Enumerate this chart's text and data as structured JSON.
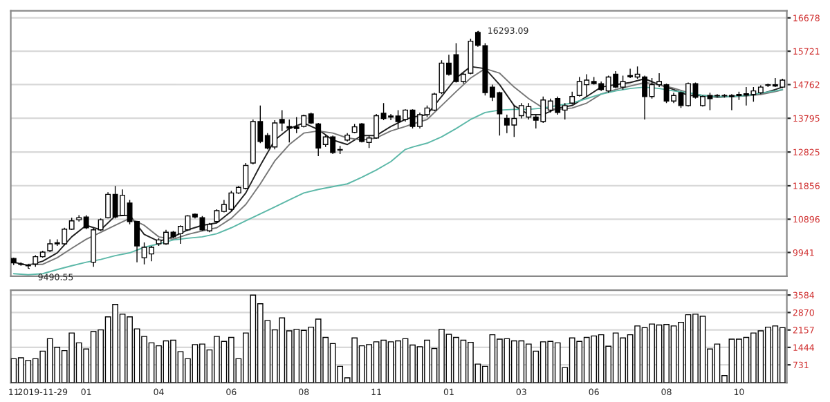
{
  "chart_data": [
    {
      "type": "candlestick",
      "categories": [
        "11",
        null,
        null,
        null,
        "2019-11-29",
        null,
        null,
        null,
        null,
        null,
        "01",
        null,
        null,
        null,
        null,
        null,
        null,
        null,
        null,
        null,
        "04",
        null,
        null,
        null,
        null,
        null,
        null,
        null,
        null,
        null,
        "06",
        null,
        null,
        null,
        null,
        null,
        null,
        null,
        null,
        null,
        "08",
        null,
        null,
        null,
        null,
        null,
        null,
        null,
        null,
        null,
        "11",
        null,
        null,
        null,
        null,
        null,
        null,
        null,
        null,
        null,
        "01",
        null,
        null,
        null,
        null,
        null,
        null,
        null,
        null,
        null,
        "03",
        null,
        null,
        null,
        null,
        null,
        null,
        null,
        null,
        null,
        "06",
        null,
        null,
        null,
        null,
        null,
        null,
        null,
        null,
        null,
        "08",
        null,
        null,
        null,
        null,
        null,
        null,
        null,
        null,
        null,
        "10",
        null,
        null,
        null,
        null,
        null,
        null
      ],
      "ohlc": [
        [
          9770,
          9790,
          9580,
          9640
        ],
        [
          9610,
          9660,
          9560,
          9600
        ],
        [
          9580,
          9610,
          9490,
          9560
        ],
        [
          9610,
          9860,
          9530,
          9820
        ],
        [
          9820,
          9990,
          9790,
          9950
        ],
        [
          9990,
          10320,
          9950,
          10190
        ],
        [
          10190,
          10320,
          10130,
          10220
        ],
        [
          10190,
          10650,
          10160,
          10610
        ],
        [
          10610,
          10940,
          10590,
          10850
        ],
        [
          10880,
          11010,
          10830,
          10940
        ],
        [
          10960,
          11010,
          10610,
          10650
        ],
        [
          9660,
          10650,
          9530,
          10590
        ],
        [
          10590,
          10920,
          10560,
          10880
        ],
        [
          10940,
          11670,
          10920,
          11610
        ],
        [
          11610,
          11850,
          10920,
          10960
        ],
        [
          11010,
          11750,
          10990,
          11580
        ],
        [
          11360,
          11450,
          10750,
          10830
        ],
        [
          10830,
          10850,
          9660,
          10130
        ],
        [
          9790,
          10230,
          9600,
          10090
        ],
        [
          9900,
          10130,
          9690,
          10090
        ],
        [
          10190,
          10350,
          10130,
          10300
        ],
        [
          10190,
          10590,
          10160,
          10520
        ],
        [
          10520,
          10560,
          10350,
          10390
        ],
        [
          10480,
          10720,
          10190,
          10690
        ],
        [
          10590,
          11010,
          10560,
          10990
        ],
        [
          11040,
          11060,
          10920,
          10960
        ],
        [
          10940,
          10990,
          10560,
          10590
        ],
        [
          10560,
          10790,
          10520,
          10750
        ],
        [
          10830,
          11180,
          10790,
          11140
        ],
        [
          11120,
          11450,
          11090,
          11320
        ],
        [
          11180,
          11710,
          11140,
          11650
        ],
        [
          11650,
          11850,
          11620,
          11810
        ],
        [
          11780,
          12510,
          11750,
          12440
        ],
        [
          12510,
          13760,
          12470,
          13700
        ],
        [
          13700,
          14160,
          13080,
          13130
        ],
        [
          13300,
          13370,
          12900,
          12940
        ],
        [
          12970,
          13740,
          12900,
          13660
        ],
        [
          13760,
          14030,
          13430,
          13660
        ],
        [
          13560,
          13760,
          13100,
          13510
        ],
        [
          13550,
          13830,
          13370,
          13500
        ],
        [
          13560,
          13900,
          13530,
          13870
        ],
        [
          13920,
          13960,
          13630,
          13660
        ],
        [
          13630,
          13660,
          12710,
          12940
        ],
        [
          13040,
          13300,
          12970,
          13260
        ],
        [
          13260,
          13300,
          12770,
          12810
        ],
        [
          12900,
          13000,
          12770,
          12880
        ],
        [
          13170,
          13370,
          13130,
          13310
        ],
        [
          13390,
          13630,
          13370,
          13550
        ],
        [
          13630,
          13660,
          13100,
          13130
        ],
        [
          13100,
          13300,
          12940,
          13230
        ],
        [
          13230,
          13920,
          13210,
          13870
        ],
        [
          13940,
          14230,
          13740,
          13790
        ],
        [
          13860,
          13920,
          13740,
          13830
        ],
        [
          13860,
          14030,
          13500,
          13700
        ],
        [
          13760,
          14050,
          13700,
          14030
        ],
        [
          14030,
          14050,
          13500,
          13560
        ],
        [
          13560,
          13960,
          13500,
          13900
        ],
        [
          13900,
          14160,
          13830,
          14090
        ],
        [
          14030,
          14530,
          14000,
          14490
        ],
        [
          14530,
          15460,
          14490,
          15380
        ],
        [
          15380,
          15620,
          15020,
          15060
        ],
        [
          15620,
          15950,
          14820,
          14850
        ],
        [
          14850,
          15090,
          14790,
          15060
        ],
        [
          15090,
          16080,
          15060,
          16010
        ],
        [
          16260,
          16293.09,
          15850,
          15890
        ],
        [
          15880,
          15950,
          14450,
          14530
        ],
        [
          14690,
          14760,
          14290,
          14400
        ],
        [
          14530,
          14560,
          13300,
          13920
        ],
        [
          13790,
          13900,
          13370,
          13600
        ],
        [
          13600,
          14160,
          13260,
          13790
        ],
        [
          13870,
          14230,
          13790,
          14160
        ],
        [
          13830,
          14230,
          13760,
          14130
        ],
        [
          13830,
          13900,
          13500,
          13740
        ],
        [
          13700,
          14420,
          13660,
          14320
        ],
        [
          14030,
          14360,
          13960,
          14290
        ],
        [
          14360,
          14420,
          13900,
          13960
        ],
        [
          14030,
          14230,
          13760,
          14160
        ],
        [
          14230,
          14560,
          14190,
          14420
        ],
        [
          14450,
          14980,
          14420,
          14850
        ],
        [
          14760,
          15060,
          14420,
          14890
        ],
        [
          14850,
          14980,
          14760,
          14790
        ],
        [
          14790,
          14850,
          14580,
          14620
        ],
        [
          14580,
          15020,
          14530,
          14980
        ],
        [
          15060,
          15150,
          14660,
          14690
        ],
        [
          14690,
          15020,
          14620,
          14850
        ],
        [
          15020,
          15220,
          14950,
          14990
        ],
        [
          14980,
          15280,
          14930,
          15060
        ],
        [
          14980,
          15020,
          13760,
          14420
        ],
        [
          14420,
          14950,
          14360,
          14760
        ],
        [
          14760,
          15090,
          14690,
          14850
        ],
        [
          14760,
          14790,
          14230,
          14290
        ],
        [
          14290,
          14530,
          14230,
          14450
        ],
        [
          14530,
          14560,
          14090,
          14160
        ],
        [
          14160,
          14820,
          14130,
          14790
        ],
        [
          14790,
          14820,
          14360,
          14400
        ],
        [
          14160,
          14450,
          14130,
          14420
        ],
        [
          14450,
          14530,
          14030,
          14360
        ],
        [
          14450,
          14490,
          14400,
          14440
        ],
        [
          14440,
          14490,
          14390,
          14450
        ],
        [
          14450,
          14490,
          14030,
          14420
        ],
        [
          14450,
          14560,
          14320,
          14480
        ],
        [
          14500,
          14690,
          14160,
          14460
        ],
        [
          14480,
          14690,
          14270,
          14580
        ],
        [
          14530,
          14740,
          14490,
          14690
        ],
        [
          14740,
          14790,
          14690,
          14760
        ],
        [
          14760,
          14950,
          14690,
          14720
        ],
        [
          14690,
          14930,
          14660,
          14890
        ]
      ],
      "series": [
        {
          "type": "line",
          "color": "#222222",
          "values": [
            9660,
            null,
            9570,
            null,
            9690,
            null,
            9930,
            null,
            10390,
            null,
            10720,
            null,
            10590,
            null,
            10990,
            null,
            11010,
            null,
            10460,
            null,
            10260,
            null,
            10390,
            null,
            10590,
            null,
            10720,
            null,
            10790,
            null,
            11120,
            null,
            11650,
            null,
            12440,
            null,
            13170,
            null,
            13500,
            null,
            13660,
            null,
            13470,
            null,
            13170,
            null,
            13040,
            null,
            13300,
            null,
            13300,
            null,
            13560,
            null,
            13760,
            13830,
            null,
            13900,
            null,
            14420,
            null,
            14950,
            null,
            15280,
            null,
            15220,
            null,
            14760,
            null,
            14160,
            null,
            13900,
            null,
            13900,
            null,
            14090,
            null,
            14160,
            null,
            14420,
            null,
            14690,
            null,
            14760,
            null,
            14820,
            null,
            14930,
            null,
            14760,
            null,
            14620,
            null,
            14450,
            null,
            14450,
            null,
            14400,
            null,
            14420,
            null,
            14450,
            null,
            14490,
            null,
            14620,
            14690
          ]
        },
        {
          "type": "line",
          "color": "#777777",
          "values": [
            null,
            null,
            9600,
            null,
            9600,
            null,
            9790,
            null,
            10060,
            null,
            10320,
            null,
            10520,
            null,
            10720,
            null,
            10920,
            null,
            10720,
            null,
            10390,
            null,
            10320,
            null,
            10460,
            null,
            10560,
            null,
            10650,
            null,
            10920,
            null,
            11320,
            null,
            11910,
            null,
            12570,
            null,
            13040,
            null,
            13370,
            null,
            13430,
            null,
            13370,
            null,
            13230,
            null,
            13170,
            null,
            13230,
            null,
            13430,
            null,
            13560,
            13630,
            null,
            13760,
            null,
            14160,
            null,
            14560,
            null,
            14950,
            null,
            15220,
            null,
            15090,
            null,
            14690,
            null,
            14360,
            null,
            14090,
            null,
            14050,
            null,
            14090,
            null,
            14230,
            null,
            14490,
            null,
            14620,
            null,
            14720,
            null,
            14820,
            null,
            14760,
            null,
            14660,
            null,
            14530,
            null,
            14450,
            null,
            14420,
            null,
            14420,
            null,
            14440,
            null,
            14480,
            null,
            14560,
            14610
          ]
        },
        {
          "type": "line",
          "color": "#5cb8a8",
          "values": [
            9330,
            null,
            9300,
            null,
            9330,
            null,
            9450,
            null,
            9560,
            null,
            9660,
            null,
            9740,
            null,
            9850,
            null,
            9930,
            null,
            10090,
            null,
            10190,
            null,
            10300,
            null,
            10350,
            null,
            10390,
            null,
            10480,
            null,
            10650,
            null,
            10850,
            null,
            11050,
            null,
            11250,
            null,
            11450,
            null,
            11650,
            null,
            11750,
            null,
            11830,
            null,
            11910,
            null,
            12100,
            null,
            12310,
            null,
            12550,
            null,
            12900,
            12970,
            null,
            13080,
            null,
            13260,
            null,
            13500,
            null,
            13760,
            null,
            13960,
            null,
            14030,
            null,
            14050,
            null,
            14050,
            null,
            14090,
            null,
            14160,
            null,
            14230,
            null,
            14360,
            null,
            14490,
            null,
            14580,
            null,
            14650,
            null,
            14690,
            null,
            14650,
            null,
            14580,
            null,
            14530,
            null,
            14450,
            null,
            14420,
            null,
            14420,
            null,
            14450,
            null,
            14520,
            null,
            14580,
            14620
          ]
        }
      ],
      "annotations": [
        "16293.09",
        "9490.55"
      ],
      "ylim": [
        9260,
        16880
      ],
      "yticks": [
        9941,
        10896,
        11856,
        12825,
        13795,
        14762,
        15721,
        16678
      ],
      "grid": "y",
      "tick_labels": "y"
    },
    {
      "type": "bar",
      "categories": [
        "11",
        null,
        null,
        null,
        "2019-11-29",
        null,
        null,
        null,
        null,
        null,
        "01",
        null,
        null,
        null,
        null,
        null,
        null,
        null,
        null,
        null,
        "04",
        null,
        null,
        null,
        null,
        null,
        null,
        null,
        null,
        null,
        "06",
        null,
        null,
        null,
        null,
        null,
        null,
        null,
        null,
        null,
        "08",
        null,
        null,
        null,
        null,
        null,
        null,
        null,
        null,
        null,
        "11",
        null,
        null,
        null,
        null,
        null,
        null,
        null,
        null,
        null,
        "01",
        null,
        null,
        null,
        null,
        null,
        null,
        null,
        null,
        null,
        "03",
        null,
        null,
        null,
        null,
        null,
        null,
        null,
        null,
        null,
        "06",
        null,
        null,
        null,
        null,
        null,
        null,
        null,
        null,
        null,
        "08",
        null,
        null,
        null,
        null,
        null,
        null,
        null,
        null,
        null,
        "10",
        null,
        null,
        null,
        null,
        null,
        null
      ],
      "values": [
        980,
        1020,
        910,
        980,
        1290,
        1800,
        1450,
        1310,
        2030,
        1630,
        1380,
        2090,
        2160,
        2690,
        3200,
        2800,
        2690,
        2200,
        1890,
        1630,
        1510,
        1710,
        1740,
        1270,
        980,
        1560,
        1580,
        1340,
        1890,
        1690,
        1850,
        980,
        2030,
        3580,
        3230,
        2540,
        2160,
        2650,
        2120,
        2180,
        2140,
        2270,
        2600,
        1850,
        1600,
        670,
        200,
        1830,
        1510,
        1560,
        1670,
        1740,
        1670,
        1710,
        1800,
        1540,
        1470,
        1740,
        1400,
        2180,
        1980,
        1850,
        1740,
        1650,
        760,
        670,
        1960,
        1780,
        1800,
        1710,
        1710,
        1580,
        1290,
        1670,
        1690,
        1630,
        620,
        1830,
        1690,
        1850,
        1910,
        1960,
        1490,
        2030,
        1830,
        1960,
        2320,
        2250,
        2400,
        2360,
        2380,
        2320,
        2470,
        2780,
        2800,
        2720,
        1380,
        1580,
        290,
        1780,
        1780,
        1850,
        2030,
        2120,
        2270,
        2320,
        2250
      ],
      "color": "#ffffff",
      "ylim": [
        0,
        3780
      ],
      "yticks": [
        731,
        1444,
        2157,
        2870,
        3584
      ],
      "grid": "y"
    }
  ]
}
